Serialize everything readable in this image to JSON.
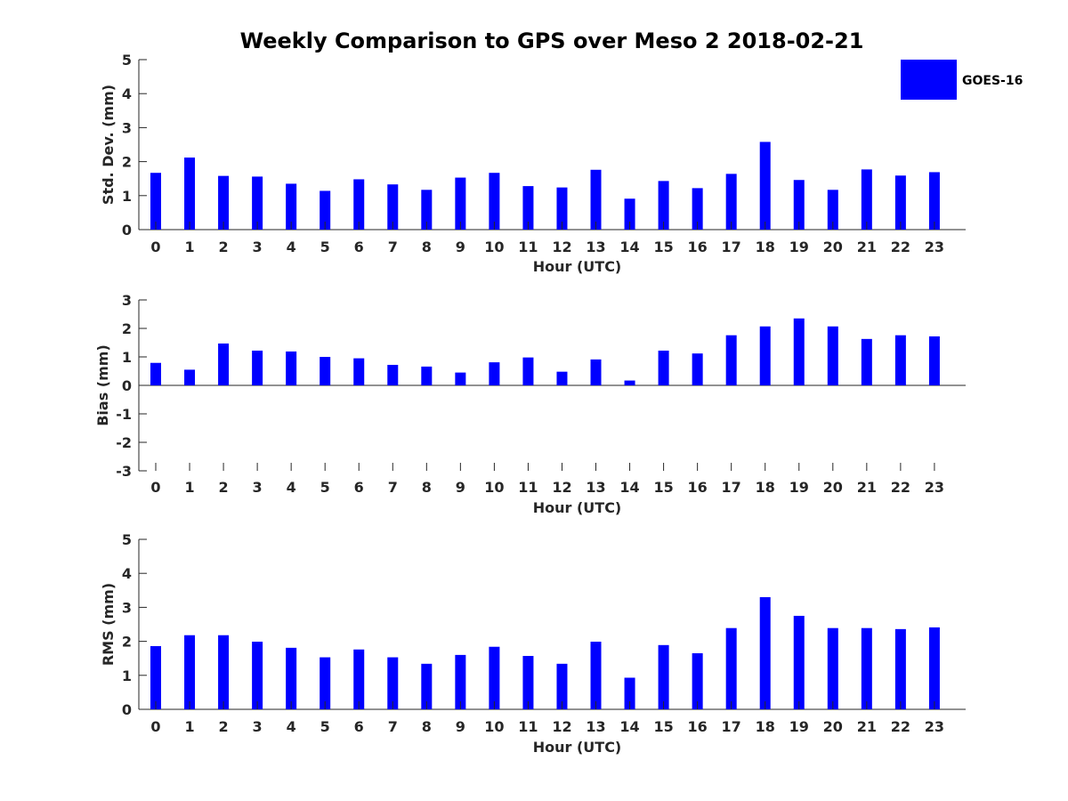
{
  "chart_data": [
    {
      "type": "bar",
      "title": "Weekly Comparison to GPS over Meso 2 2018-02-21",
      "xlabel": "Hour (UTC)",
      "ylabel": "Std. Dev. (mm)",
      "ylim": [
        0,
        5
      ],
      "yticks": [
        "0",
        "1",
        "2",
        "3",
        "4",
        "5"
      ],
      "categories": [
        "0",
        "1",
        "2",
        "3",
        "4",
        "5",
        "6",
        "7",
        "8",
        "9",
        "10",
        "11",
        "12",
        "13",
        "14",
        "15",
        "16",
        "17",
        "18",
        "19",
        "20",
        "21",
        "22",
        "23"
      ],
      "series": [
        {
          "name": "GOES-16",
          "color": "#0000ff",
          "values": [
            1.67,
            2.12,
            1.58,
            1.56,
            1.35,
            1.14,
            1.48,
            1.33,
            1.17,
            1.53,
            1.67,
            1.28,
            1.24,
            1.76,
            0.91,
            1.43,
            1.22,
            1.64,
            2.58,
            1.46,
            1.17,
            1.77,
            1.59,
            1.69
          ]
        }
      ],
      "legend": {
        "entries": [
          "GOES-16"
        ],
        "location": "top-right"
      }
    },
    {
      "type": "bar",
      "xlabel": "Hour (UTC)",
      "ylabel": "Bias (mm)",
      "ylim": [
        -3,
        3
      ],
      "yticks": [
        "-3",
        "-2",
        "-1",
        "0",
        "1",
        "2",
        "3"
      ],
      "categories": [
        "0",
        "1",
        "2",
        "3",
        "4",
        "5",
        "6",
        "7",
        "8",
        "9",
        "10",
        "11",
        "12",
        "13",
        "14",
        "15",
        "16",
        "17",
        "18",
        "19",
        "20",
        "21",
        "22",
        "23"
      ],
      "series": [
        {
          "name": "GOES-16",
          "color": "#0000ff",
          "values": [
            0.79,
            0.55,
            1.47,
            1.22,
            1.19,
            1.0,
            0.95,
            0.72,
            0.66,
            0.45,
            0.81,
            0.98,
            0.48,
            0.91,
            0.17,
            1.22,
            1.12,
            1.76,
            2.07,
            2.35,
            2.07,
            1.63,
            1.76,
            1.72
          ]
        }
      ]
    },
    {
      "type": "bar",
      "xlabel": "Hour (UTC)",
      "ylabel": "RMS (mm)",
      "ylim": [
        0,
        5
      ],
      "yticks": [
        "0",
        "1",
        "2",
        "3",
        "4",
        "5"
      ],
      "categories": [
        "0",
        "1",
        "2",
        "3",
        "4",
        "5",
        "6",
        "7",
        "8",
        "9",
        "10",
        "11",
        "12",
        "13",
        "14",
        "15",
        "16",
        "17",
        "18",
        "19",
        "20",
        "21",
        "22",
        "23"
      ],
      "series": [
        {
          "name": "GOES-16",
          "color": "#0000ff",
          "values": [
            1.86,
            2.18,
            2.18,
            1.99,
            1.81,
            1.53,
            1.76,
            1.53,
            1.34,
            1.6,
            1.84,
            1.57,
            1.34,
            1.99,
            0.93,
            1.89,
            1.65,
            2.39,
            3.3,
            2.75,
            2.39,
            2.39,
            2.36,
            2.41
          ]
        }
      ]
    }
  ]
}
